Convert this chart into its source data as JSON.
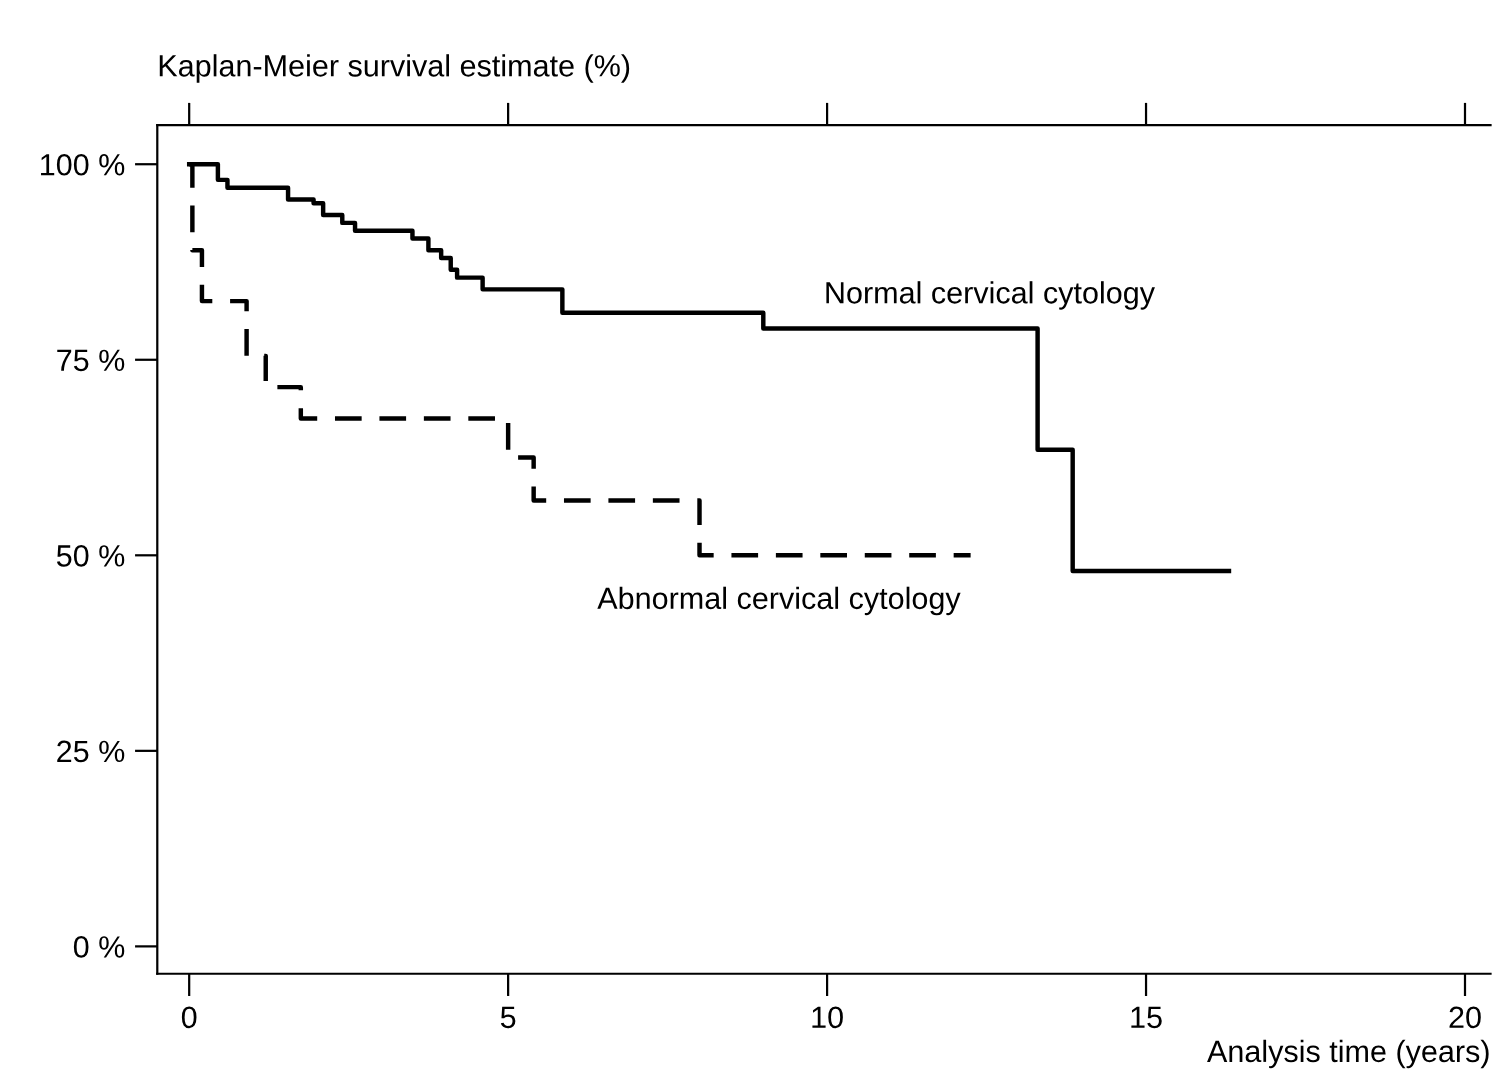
{
  "chart_data": {
    "type": "step",
    "ylabel": "Kaplan-Meier survival estimate (%)",
    "xlabel": "Analysis time (years)",
    "xlim": [
      -0.5,
      20.4
    ],
    "ylim": [
      -3.5,
      105
    ],
    "xticks": [
      0,
      5,
      10,
      15,
      20
    ],
    "yticks": [
      {
        "value": 0,
        "label": "0 %"
      },
      {
        "value": 25,
        "label": "25 %"
      },
      {
        "value": 50,
        "label": "50 %"
      },
      {
        "value": 75,
        "label": "75 %"
      },
      {
        "value": 100,
        "label": "100 %"
      }
    ],
    "grid": false,
    "legend": false,
    "marker": "none",
    "series": [
      {
        "name": "Normal cervical cytology",
        "color": "#000000",
        "line_style": "solid",
        "x": [
          0,
          0.45,
          0.6,
          1.55,
          1.95,
          2.1,
          2.4,
          2.6,
          3.5,
          3.75,
          3.95,
          4.1,
          4.2,
          4.6,
          5.85,
          9.0,
          13.3,
          13.85,
          16.3
        ],
        "values": [
          100,
          98,
          97,
          95.5,
          95,
          93.5,
          92.5,
          91.5,
          90.5,
          89,
          88,
          86.5,
          85.5,
          84,
          81,
          79,
          63.5,
          48,
          48
        ]
      },
      {
        "name": "Abnormal cervical cytology",
        "color": "#000000",
        "line_style": "dashed",
        "x": [
          0,
          0.05,
          0.2,
          0.9,
          1.2,
          1.75,
          5.0,
          5.4,
          8.0,
          12.25
        ],
        "values": [
          100,
          89,
          82.5,
          75.5,
          71.5,
          67.5,
          62.5,
          57,
          50,
          50
        ]
      }
    ]
  }
}
